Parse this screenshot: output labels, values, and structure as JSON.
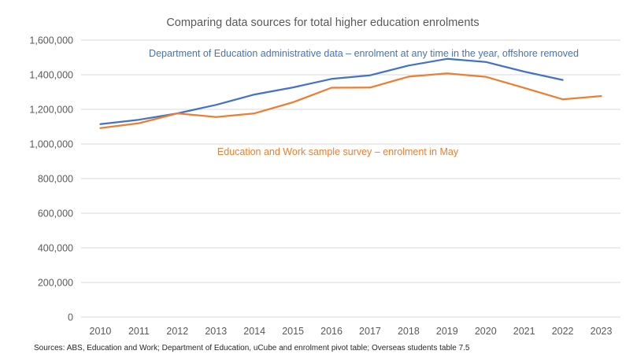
{
  "chart_data": {
    "type": "line",
    "title": "Comparing data sources for total higher education enrolments",
    "xlabel": "",
    "ylabel": "",
    "x": [
      "2010",
      "2011",
      "2012",
      "2013",
      "2014",
      "2015",
      "2016",
      "2017",
      "2018",
      "2019",
      "2020",
      "2021",
      "2022",
      "2023"
    ],
    "ylim": [
      0,
      1600000
    ],
    "yticks": [
      0,
      200000,
      400000,
      600000,
      800000,
      1000000,
      1200000,
      1400000,
      1600000
    ],
    "ytick_labels": [
      "0",
      "200,000",
      "400,000",
      "600,000",
      "800,000",
      "1,000,000",
      "1,200,000",
      "1,400,000",
      "1,600,000"
    ],
    "grid": true,
    "legend": "none (inline annotations)",
    "series": [
      {
        "name": "Department of Education administrative data – enrolment at any time in the year, offshore removed",
        "color": "#4472c4",
        "values": [
          1115000,
          1140000,
          1177000,
          1226000,
          1286000,
          1327000,
          1376000,
          1397000,
          1453000,
          1492000,
          1474000,
          1418000,
          1370000,
          null
        ]
      },
      {
        "name": "Education and Work sample survey – enrolment in May",
        "color": "#ed7d31",
        "values": [
          1092000,
          1120000,
          1177000,
          1156000,
          1177000,
          1241000,
          1325000,
          1326000,
          1389000,
          1408000,
          1388000,
          1324000,
          1258000,
          1277000
        ]
      }
    ],
    "annotations": [
      {
        "text": "Department of Education administrative data – enrolment at any time in the year, offshore removed",
        "color": "#4472c4",
        "position": "top, above blue line"
      },
      {
        "text": "Education and Work sample survey – enrolment in May",
        "color": "#ed7d31",
        "position": "middle, below lines"
      }
    ]
  },
  "source_note": "Sources: ABS, Education and Work; Department of Education, uCube and enrolment pivot table; Overseas students table 7.5"
}
